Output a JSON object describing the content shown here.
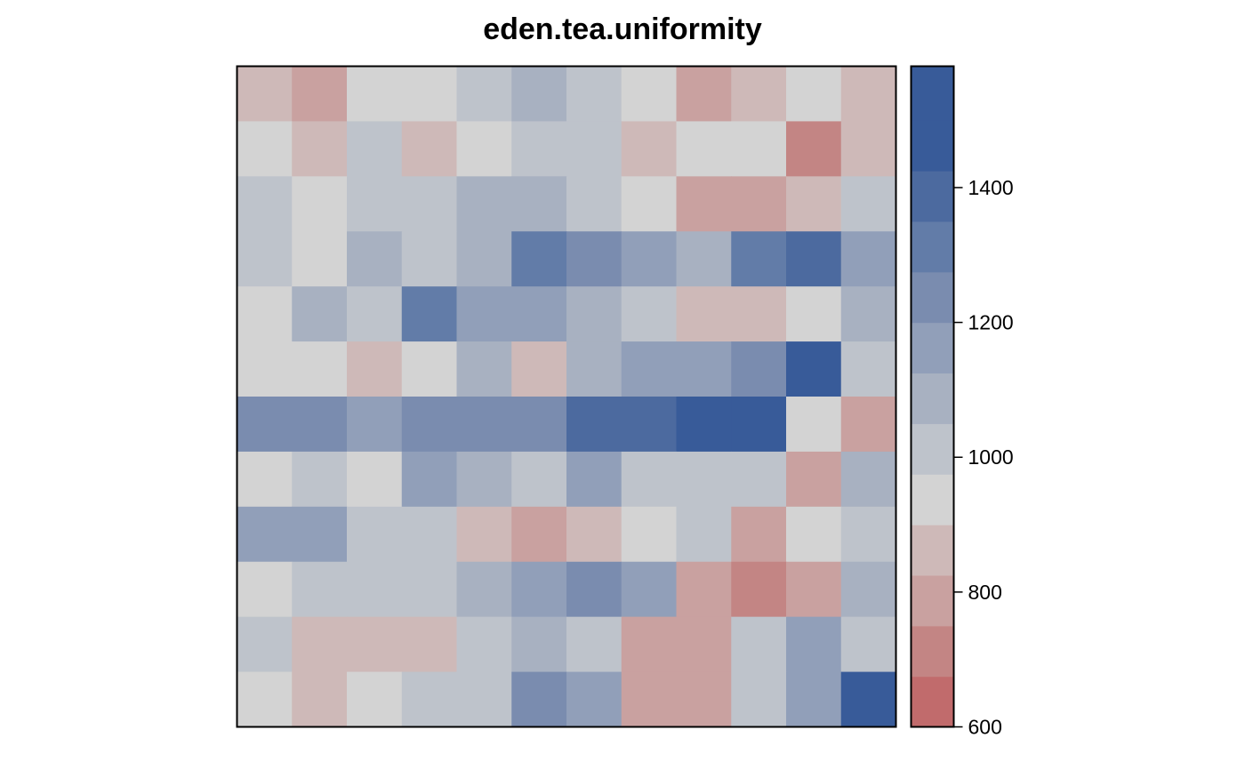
{
  "chart_data": {
    "type": "heatmap",
    "title": "eden.tea.uniformity",
    "xlabel": "",
    "ylabel": "",
    "rows": 12,
    "cols": 12,
    "values": [
      [
        850,
        775,
        925,
        925,
        1000,
        1075,
        1000,
        925,
        775,
        850,
        925,
        850
      ],
      [
        925,
        850,
        1000,
        850,
        925,
        1000,
        1000,
        850,
        925,
        925,
        725,
        850
      ],
      [
        1000,
        925,
        1000,
        1000,
        1075,
        1075,
        1000,
        925,
        775,
        775,
        850,
        1000
      ],
      [
        1000,
        925,
        1075,
        1000,
        1075,
        1300,
        1225,
        1150,
        1075,
        1300,
        1375,
        1150
      ],
      [
        925,
        1075,
        1000,
        1300,
        1150,
        1150,
        1075,
        1000,
        850,
        850,
        925,
        1075
      ],
      [
        925,
        925,
        850,
        925,
        1075,
        850,
        1075,
        1150,
        1150,
        1225,
        1525,
        1000
      ],
      [
        1225,
        1225,
        1150,
        1225,
        1225,
        1225,
        1375,
        1375,
        1450,
        1450,
        925,
        775
      ],
      [
        925,
        1000,
        925,
        1150,
        1075,
        1000,
        1150,
        1000,
        1000,
        1000,
        775,
        1075
      ],
      [
        1150,
        1150,
        1000,
        1000,
        850,
        775,
        850,
        925,
        1000,
        775,
        925,
        1000
      ],
      [
        925,
        1000,
        1000,
        1000,
        1075,
        1150,
        1225,
        1150,
        775,
        700,
        775,
        1075
      ],
      [
        1000,
        850,
        850,
        850,
        1000,
        1075,
        1000,
        775,
        775,
        1000,
        1150,
        1000
      ],
      [
        925,
        850,
        925,
        1000,
        1000,
        1225,
        1150,
        775,
        775,
        1000,
        1150,
        1450
      ]
    ],
    "colorbar": {
      "min": 600,
      "max": 1580,
      "ticks": [
        600,
        800,
        1000,
        1200,
        1400
      ],
      "breaks": [
        600,
        675,
        750,
        825,
        900,
        975,
        1050,
        1125,
        1200,
        1275,
        1350,
        1425,
        1500,
        1580
      ],
      "colors": [
        "#c16b6c",
        "#c38584",
        "#c9a1a0",
        "#ceb9b8",
        "#d3d3d3",
        "#bec3cb",
        "#a8b1c1",
        "#919fb9",
        "#7a8caf",
        "#627ca8",
        "#4c6a9f",
        "#385b99",
        "#385b99"
      ]
    },
    "legend": "right",
    "grid": false
  }
}
